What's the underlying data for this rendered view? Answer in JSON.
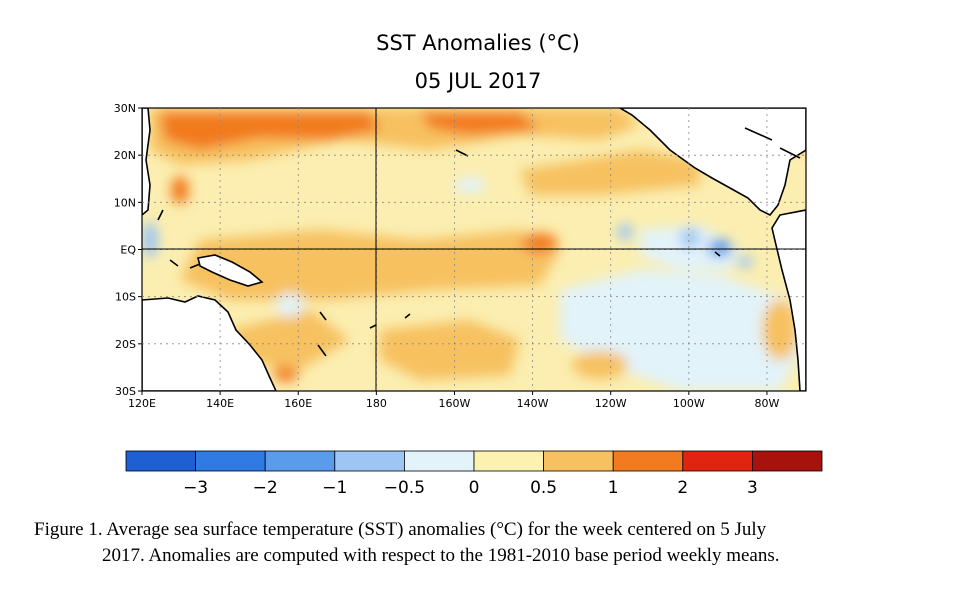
{
  "title": "SST Anomalies (°C)",
  "date": "05 JUL 2017",
  "lat_labels": [
    "30N",
    "20N",
    "10N",
    "EQ",
    "10S",
    "20S",
    "30S"
  ],
  "lon_labels": [
    "120E",
    "140E",
    "160E",
    "180",
    "160W",
    "140W",
    "120W",
    "100W",
    "80W"
  ],
  "colorbar": {
    "colors": [
      "#1f5fd4",
      "#2f7ae3",
      "#5a9bec",
      "#9dc6f4",
      "#e2f3f9",
      "#fbf1b0",
      "#f7c161",
      "#f27a1f",
      "#e0240f",
      "#a8120c"
    ],
    "tick_labels": [
      "−3",
      "−2",
      "−1",
      "−0.5",
      "0",
      "0.5",
      "1",
      "2",
      "3"
    ]
  },
  "caption": {
    "line1": "Figure 1. Average sea surface temperature (SST) anomalies (°C) for the week centered on 5 July",
    "line2": "2017.  Anomalies are computed with respect to the 1981-2010 base period weekly means."
  }
}
